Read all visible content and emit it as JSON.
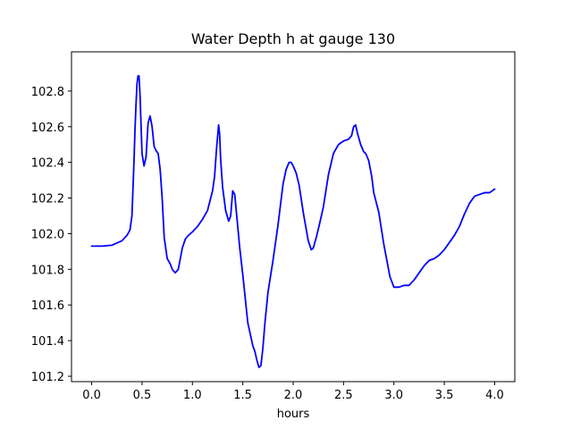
{
  "chart_data": {
    "type": "line",
    "title": "Water Depth h at gauge 130",
    "xlabel": "hours",
    "ylabel": "",
    "xlim": [
      -0.2,
      4.2
    ],
    "ylim": [
      101.17,
      103.02
    ],
    "xticks": [
      0.0,
      0.5,
      1.0,
      1.5,
      2.0,
      2.5,
      3.0,
      3.5,
      4.0
    ],
    "xtick_labels": [
      "0.0",
      "0.5",
      "1.0",
      "1.5",
      "2.0",
      "2.5",
      "3.0",
      "3.5",
      "4.0"
    ],
    "yticks": [
      101.2,
      101.4,
      101.6,
      101.8,
      102.0,
      102.2,
      102.4,
      102.6,
      102.8
    ],
    "ytick_labels": [
      "101.2",
      "101.4",
      "101.6",
      "101.8",
      "102.0",
      "102.2",
      "102.4",
      "102.6",
      "102.8"
    ],
    "grid": false,
    "series": [
      {
        "color": "#0000ff",
        "x": [
          0.0,
          0.1,
          0.2,
          0.3,
          0.35,
          0.38,
          0.4,
          0.42,
          0.43,
          0.44,
          0.45,
          0.46,
          0.47,
          0.48,
          0.5,
          0.52,
          0.54,
          0.56,
          0.58,
          0.6,
          0.62,
          0.64,
          0.66,
          0.68,
          0.7,
          0.72,
          0.75,
          0.78,
          0.8,
          0.83,
          0.86,
          0.88,
          0.9,
          0.93,
          0.96,
          1.0,
          1.05,
          1.1,
          1.15,
          1.2,
          1.22,
          1.24,
          1.26,
          1.27,
          1.28,
          1.3,
          1.33,
          1.36,
          1.38,
          1.4,
          1.42,
          1.44,
          1.47,
          1.5,
          1.55,
          1.6,
          1.62,
          1.64,
          1.66,
          1.68,
          1.7,
          1.72,
          1.75,
          1.8,
          1.85,
          1.9,
          1.93,
          1.96,
          1.98,
          2.0,
          2.03,
          2.06,
          2.1,
          2.15,
          2.18,
          2.2,
          2.23,
          2.26,
          2.3,
          2.35,
          2.4,
          2.45,
          2.5,
          2.55,
          2.58,
          2.6,
          2.62,
          2.64,
          2.67,
          2.7,
          2.72,
          2.75,
          2.78,
          2.8,
          2.85,
          2.9,
          2.93,
          2.96,
          3.0,
          3.05,
          3.1,
          3.15,
          3.2,
          3.25,
          3.3,
          3.35,
          3.4,
          3.45,
          3.5,
          3.55,
          3.6,
          3.65,
          3.7,
          3.75,
          3.8,
          3.85,
          3.9,
          3.95,
          4.0
        ],
        "y": [
          101.93,
          101.93,
          101.935,
          101.96,
          101.99,
          102.02,
          102.1,
          102.4,
          102.58,
          102.72,
          102.84,
          102.885,
          102.885,
          102.78,
          102.45,
          102.38,
          102.43,
          102.62,
          102.66,
          102.6,
          102.49,
          102.465,
          102.45,
          102.36,
          102.2,
          101.98,
          101.86,
          101.83,
          101.8,
          101.78,
          101.8,
          101.86,
          101.92,
          101.97,
          101.99,
          102.01,
          102.04,
          102.08,
          102.13,
          102.24,
          102.32,
          102.48,
          102.61,
          102.56,
          102.42,
          102.26,
          102.13,
          102.07,
          102.1,
          102.24,
          102.22,
          102.1,
          101.92,
          101.77,
          101.5,
          101.37,
          101.34,
          101.29,
          101.25,
          101.26,
          101.36,
          101.5,
          101.67,
          101.85,
          102.05,
          102.28,
          102.36,
          102.4,
          102.4,
          102.38,
          102.34,
          102.27,
          102.12,
          101.96,
          101.91,
          101.92,
          101.98,
          102.05,
          102.15,
          102.33,
          102.45,
          102.5,
          102.52,
          102.53,
          102.55,
          102.6,
          102.61,
          102.56,
          102.5,
          102.46,
          102.45,
          102.41,
          102.32,
          102.23,
          102.12,
          101.94,
          101.85,
          101.76,
          101.7,
          101.7,
          101.71,
          101.71,
          101.74,
          101.78,
          101.82,
          101.85,
          101.86,
          101.88,
          101.91,
          101.95,
          101.99,
          102.04,
          102.11,
          102.17,
          102.21,
          102.22,
          102.23,
          102.23,
          102.25
        ]
      }
    ]
  }
}
